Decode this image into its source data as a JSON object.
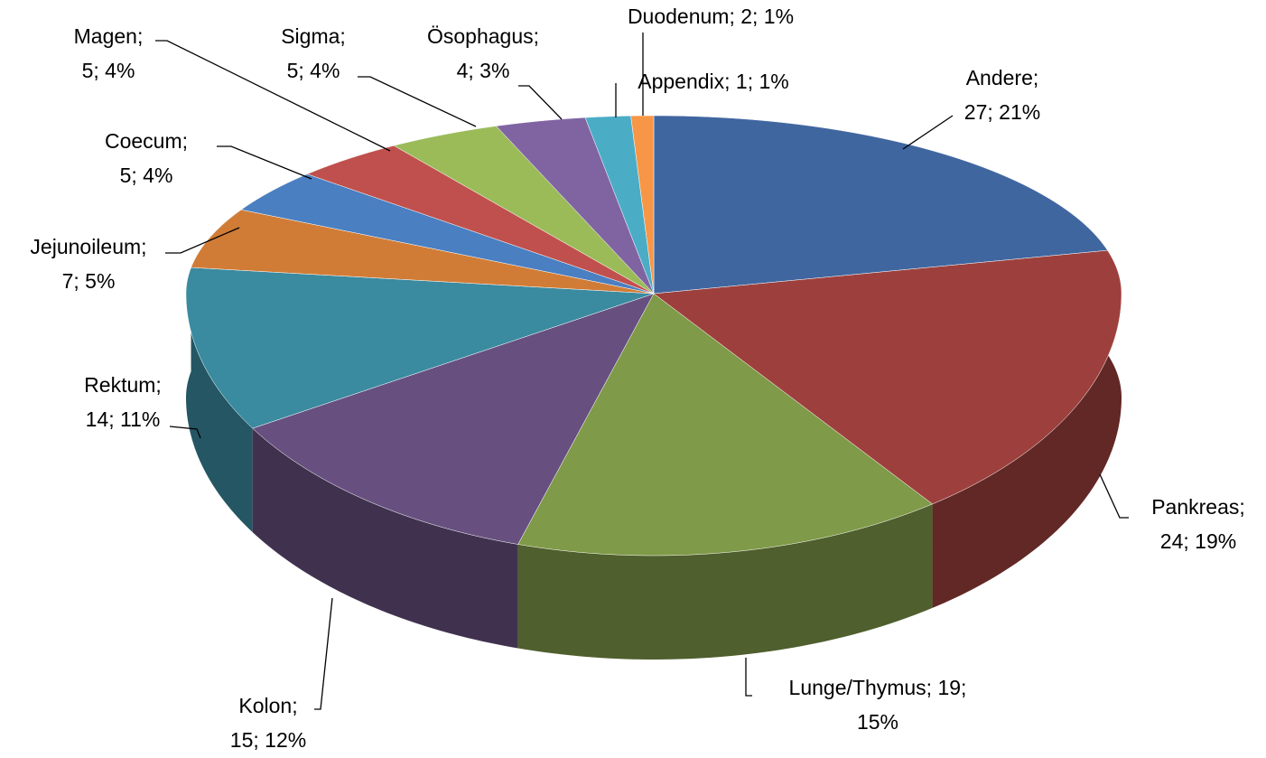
{
  "chart_data": {
    "type": "pie3d",
    "values": [
      27,
      24,
      19,
      15,
      14,
      7,
      5,
      5,
      5,
      4,
      2,
      1
    ],
    "value_labels": [
      [
        "Andere;",
        "27; 21%"
      ],
      [
        "Pankreas;",
        "24; 19%"
      ],
      [
        "Lunge/Thymus; 19;",
        "15%"
      ],
      [
        "Kolon;",
        "15; 12%"
      ],
      [
        "Rektum;",
        "14; 11%"
      ],
      [
        "Jejunoileum;",
        "7; 5%"
      ],
      [
        "Coecum;",
        "5; 4%"
      ],
      [
        "Magen;",
        "5; 4%"
      ],
      [
        "Sigma;",
        "5; 4%"
      ],
      [
        "Ösophagus;",
        "4; 3%"
      ],
      [
        "Duodenum; 2; 1%"
      ],
      [
        "Appendix; 1; 1%"
      ]
    ],
    "colors": [
      "#4066a0",
      "#9d403d",
      "#7f9a48",
      "#67507f",
      "#3a8aa0",
      "#d17c36",
      "#4a7fc1",
      "#c0504d",
      "#9bbb59",
      "#8064a2",
      "#4bacc6",
      "#f79646"
    ]
  }
}
